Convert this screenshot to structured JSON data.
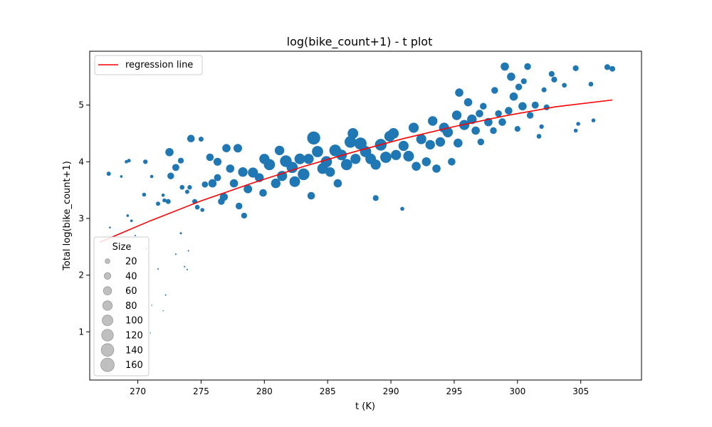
{
  "chart_data": {
    "type": "scatter",
    "title": "log(bike_count+1) - t plot",
    "xlabel": "t (K)",
    "ylabel": "Total log(bike_count+1)",
    "xlim": [
      266.2,
      309.8
    ],
    "ylim": [
      0.15,
      5.95
    ],
    "x_ticks": [
      270,
      275,
      280,
      285,
      290,
      295,
      300,
      305
    ],
    "y_ticks": [
      1,
      2,
      3,
      4,
      5
    ],
    "grid": false,
    "point_color": "#1f77b4",
    "regression": {
      "name": "regression line",
      "color": "#ff0000",
      "x": [
        267.0,
        271.0,
        275.0,
        279.0,
        283.0,
        287.0,
        291.0,
        295.0,
        299.0,
        303.0,
        307.5
      ],
      "y": [
        2.58,
        2.96,
        3.31,
        3.62,
        3.91,
        4.17,
        4.41,
        4.62,
        4.81,
        4.97,
        5.09
      ]
    },
    "legend_line": {
      "label": "regression line",
      "placement": "upper left"
    },
    "size_legend": {
      "title": "Size",
      "placement": "lower left",
      "sizes": [
        20,
        40,
        60,
        80,
        100,
        120,
        140,
        160
      ],
      "labels": [
        "20",
        "40",
        "60",
        "80",
        "100",
        "120",
        "140",
        "160"
      ],
      "color": "#bfbfbf"
    },
    "points": [
      [
        267.7,
        3.79,
        16
      ],
      [
        267.8,
        2.84,
        3
      ],
      [
        268.7,
        3.74,
        6
      ],
      [
        269.1,
        4.0,
        10
      ],
      [
        269.3,
        4.02,
        12
      ],
      [
        269.2,
        3.05,
        6
      ],
      [
        269.5,
        2.96,
        6
      ],
      [
        270.5,
        3.42,
        14
      ],
      [
        270.6,
        4.0,
        18
      ],
      [
        271.1,
        3.74,
        10
      ],
      [
        271.6,
        3.26,
        16
      ],
      [
        272.0,
        3.41,
        10
      ],
      [
        272.1,
        3.32,
        14
      ],
      [
        272.4,
        3.3,
        22
      ],
      [
        272.6,
        3.75,
        40
      ],
      [
        272.5,
        4.17,
        60
      ],
      [
        273.0,
        3.9,
        44
      ],
      [
        273.4,
        4.02,
        30
      ],
      [
        273.5,
        3.55,
        20
      ],
      [
        273.9,
        3.47,
        16
      ],
      [
        274.1,
        3.55,
        18
      ],
      [
        274.2,
        4.41,
        50
      ],
      [
        274.5,
        3.3,
        22
      ],
      [
        274.7,
        3.2,
        20
      ],
      [
        275.0,
        4.4,
        22
      ],
      [
        275.3,
        3.6,
        34
      ],
      [
        275.1,
        3.15,
        14
      ],
      [
        275.7,
        4.08,
        50
      ],
      [
        275.9,
        3.62,
        60
      ],
      [
        276.3,
        4.0,
        56
      ],
      [
        276.3,
        3.72,
        44
      ],
      [
        276.6,
        3.3,
        40
      ],
      [
        276.8,
        3.38,
        56
      ],
      [
        277.3,
        3.88,
        60
      ],
      [
        277.0,
        4.24,
        60
      ],
      [
        277.6,
        3.62,
        60
      ],
      [
        277.9,
        4.24,
        64
      ],
      [
        278.3,
        3.82,
        80
      ],
      [
        278.0,
        3.22,
        40
      ],
      [
        278.4,
        3.05,
        30
      ],
      [
        278.7,
        3.52,
        64
      ],
      [
        279.1,
        3.81,
        90
      ],
      [
        279.6,
        3.72,
        70
      ],
      [
        280.0,
        4.05,
        90
      ],
      [
        279.9,
        3.45,
        50
      ],
      [
        280.4,
        3.95,
        110
      ],
      [
        280.9,
        3.62,
        80
      ],
      [
        281.2,
        4.2,
        80
      ],
      [
        281.4,
        3.75,
        90
      ],
      [
        281.7,
        4.01,
        120
      ],
      [
        282.2,
        3.9,
        110
      ],
      [
        282.4,
        3.65,
        100
      ],
      [
        282.8,
        4.05,
        100
      ],
      [
        283.1,
        3.78,
        120
      ],
      [
        283.5,
        4.05,
        90
      ],
      [
        283.7,
        3.4,
        50
      ],
      [
        283.9,
        4.42,
        150
      ],
      [
        284.2,
        4.18,
        110
      ],
      [
        284.6,
        3.88,
        100
      ],
      [
        284.9,
        4.0,
        110
      ],
      [
        285.2,
        3.82,
        80
      ],
      [
        285.6,
        4.2,
        120
      ],
      [
        285.8,
        3.62,
        60
      ],
      [
        286.1,
        4.12,
        100
      ],
      [
        286.5,
        3.95,
        110
      ],
      [
        286.8,
        4.35,
        120
      ],
      [
        287.0,
        4.5,
        100
      ],
      [
        287.2,
        4.05,
        90
      ],
      [
        287.6,
        4.32,
        130
      ],
      [
        288.0,
        4.18,
        110
      ],
      [
        288.4,
        4.05,
        100
      ],
      [
        288.8,
        3.95,
        90
      ],
      [
        288.8,
        3.36,
        30
      ],
      [
        289.2,
        4.3,
        120
      ],
      [
        289.6,
        4.08,
        110
      ],
      [
        289.9,
        4.45,
        100
      ],
      [
        290.2,
        4.5,
        100
      ],
      [
        290.4,
        4.12,
        90
      ],
      [
        290.9,
        3.17,
        14
      ],
      [
        291.0,
        4.28,
        90
      ],
      [
        291.4,
        4.1,
        100
      ],
      [
        291.8,
        4.6,
        90
      ],
      [
        292.0,
        3.92,
        70
      ],
      [
        292.4,
        4.4,
        90
      ],
      [
        292.8,
        4.0,
        70
      ],
      [
        293.1,
        4.3,
        80
      ],
      [
        293.3,
        4.72,
        80
      ],
      [
        293.6,
        3.88,
        60
      ],
      [
        293.9,
        4.35,
        80
      ],
      [
        294.2,
        4.6,
        90
      ],
      [
        294.5,
        4.52,
        90
      ],
      [
        294.8,
        4.0,
        50
      ],
      [
        295.2,
        4.82,
        80
      ],
      [
        295.3,
        4.33,
        70
      ],
      [
        295.4,
        5.22,
        60
      ],
      [
        295.8,
        4.65,
        90
      ],
      [
        296.1,
        5.05,
        60
      ],
      [
        296.4,
        4.75,
        80
      ],
      [
        296.7,
        4.55,
        60
      ],
      [
        297.0,
        4.85,
        50
      ],
      [
        297.1,
        4.35,
        40
      ],
      [
        297.3,
        4.98,
        40
      ],
      [
        297.7,
        4.7,
        60
      ],
      [
        298.1,
        4.55,
        40
      ],
      [
        298.2,
        5.26,
        40
      ],
      [
        298.5,
        4.85,
        40
      ],
      [
        298.8,
        4.7,
        50
      ],
      [
        299.0,
        5.68,
        60
      ],
      [
        299.3,
        4.9,
        50
      ],
      [
        299.5,
        5.5,
        60
      ],
      [
        299.7,
        5.15,
        60
      ],
      [
        300.0,
        4.58,
        30
      ],
      [
        300.1,
        5.32,
        40
      ],
      [
        300.4,
        4.98,
        60
      ],
      [
        300.5,
        5.42,
        30
      ],
      [
        300.8,
        5.68,
        40
      ],
      [
        301.0,
        4.82,
        40
      ],
      [
        301.4,
        5.0,
        44
      ],
      [
        301.7,
        4.45,
        20
      ],
      [
        301.9,
        4.62,
        18
      ],
      [
        302.1,
        5.27,
        22
      ],
      [
        302.3,
        4.96,
        30
      ],
      [
        302.7,
        5.55,
        30
      ],
      [
        302.9,
        5.45,
        30
      ],
      [
        303.7,
        5.35,
        20
      ],
      [
        304.6,
        5.65,
        30
      ],
      [
        304.6,
        4.55,
        14
      ],
      [
        304.8,
        4.67,
        14
      ],
      [
        305.8,
        5.37,
        20
      ],
      [
        306.0,
        4.73,
        14
      ],
      [
        307.1,
        5.67,
        30
      ],
      [
        307.5,
        5.64,
        28
      ],
      [
        269.8,
        2.7,
        2
      ],
      [
        270.7,
        2.47,
        2
      ],
      [
        271.1,
        1.47,
        1
      ],
      [
        271.6,
        2.11,
        2
      ],
      [
        272.0,
        1.37,
        1
      ],
      [
        272.2,
        1.65,
        2
      ],
      [
        273.0,
        2.37,
        2
      ],
      [
        273.4,
        2.74,
        4
      ],
      [
        273.7,
        2.15,
        2
      ],
      [
        273.9,
        2.1,
        2
      ],
      [
        274.0,
        2.43,
        2
      ],
      [
        271.0,
        0.98,
        1
      ],
      [
        270.4,
        0.58,
        1
      ],
      [
        268.5,
        1.3,
        1
      ],
      [
        269.4,
        1.45,
        1
      ],
      [
        268.1,
        2.45,
        2
      ]
    ]
  }
}
